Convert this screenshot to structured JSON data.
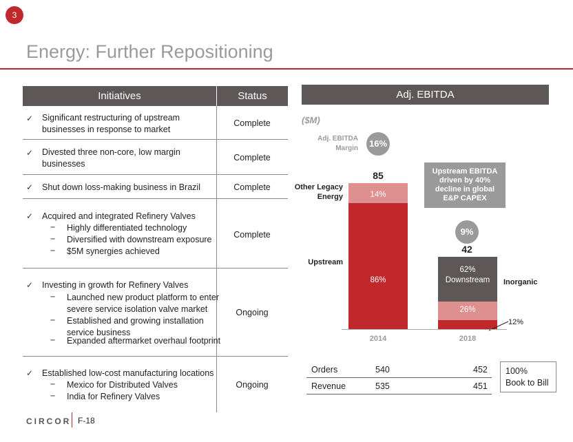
{
  "page_number": "3",
  "title": "Energy: Further Repositioning",
  "table": {
    "headers": [
      "Initiatives",
      "Status"
    ],
    "rows": [
      {
        "item": "Significant restructuring of upstream businesses in response to market",
        "item_line1": "Significant restructuring of upstream",
        "item_line2": "businesses in response to market",
        "status": "Complete"
      },
      {
        "item_line1": "Divested three non-core, low margin",
        "item_line2": "businesses",
        "status": "Complete"
      },
      {
        "item_line1": "Shut down loss-making business in Brazil",
        "status": "Complete"
      },
      {
        "item_line1": "Acquired and integrated Refinery Valves",
        "subs": [
          "Highly differentiated technology",
          "Diversified with downstream exposure",
          "$5M synergies achieved"
        ],
        "status": "Complete"
      },
      {
        "item_line1": "Investing in growth for Refinery Valves",
        "subs": [
          "Launched new product platform to enter",
          "severe service isolation valve market",
          "Established and growing installation",
          "service business",
          "Expanded aftermarket overhaul footprint"
        ],
        "status": "Ongoing"
      },
      {
        "item_line1": "Established low-cost manufacturing locations",
        "subs": [
          "Mexico for Distributed Valves",
          "India for Refinery Valves"
        ],
        "status": "Ongoing"
      }
    ],
    "check_symbol": "✓",
    "dash_symbol": "−"
  },
  "chart_header": "Adj. EBITDA",
  "chart_data": {
    "type": "bar",
    "units": "($M)",
    "categories": [
      "2014",
      "2018"
    ],
    "totals": [
      85,
      42
    ],
    "total_labels": [
      "85",
      "42"
    ],
    "margin_label_line1": "Adj. EBITDA",
    "margin_label_line2": "Margin",
    "margins": [
      "16%",
      "9%"
    ],
    "series_2014": [
      {
        "name": "Upstream",
        "share": 86,
        "label": "86%"
      },
      {
        "name": "Other Legacy Energy",
        "share": 14,
        "label": "14%"
      }
    ],
    "series_2018": [
      {
        "name": "Upstream",
        "share": 12,
        "label": "12%"
      },
      {
        "name": "Other Legacy Energy",
        "share": 26,
        "label": "26%"
      },
      {
        "name": "Inorganic",
        "share": 62,
        "label_line1": "62%",
        "label_line2": "Downstream"
      }
    ],
    "legend_left": {
      "other_line1": "Other Legacy",
      "other_line2": "Energy",
      "upstream": "Upstream"
    },
    "legend_right": "Inorganic",
    "callout": {
      "line1": "Upstream EBITDA",
      "line2": "driven by 40%",
      "line3": "decline in global",
      "line4": "E&P CAPEX"
    },
    "colors": {
      "upstream": "#c0282c",
      "other": "#de9090",
      "inorganic": "#5d5758"
    },
    "ylim": [
      0,
      100
    ]
  },
  "metrics": [
    {
      "label": "Orders",
      "v2014": "540",
      "v2018": "452"
    },
    {
      "label": "Revenue",
      "v2014": "535",
      "v2018": "451"
    }
  ],
  "book_to_bill": {
    "line1": "100%",
    "line2": "Book to Bill"
  },
  "footer": {
    "logo": "CIRCOR",
    "page": "F-18"
  }
}
